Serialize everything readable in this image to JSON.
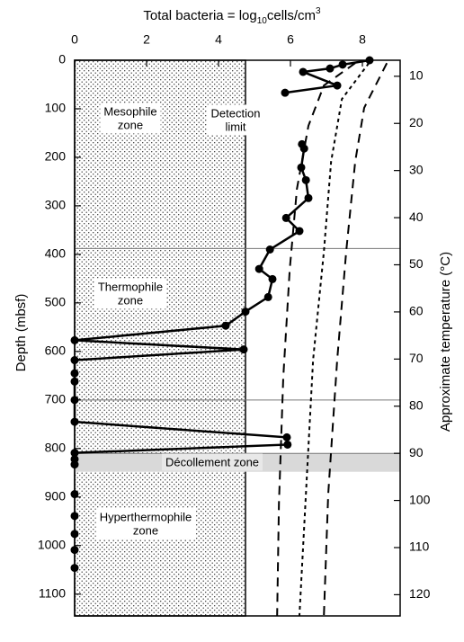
{
  "chart_data": {
    "type": "line",
    "title": [
      "Total bacteria = log",
      "10",
      "cells/cm",
      "3"
    ],
    "ylabel": "Depth (mbsf)",
    "y2label": "Approximate temperature (°C)",
    "xlim": [
      0,
      9.05
    ],
    "xticks": [
      0,
      2,
      4,
      6,
      8
    ],
    "ylim": [
      0,
      1145
    ],
    "yticks": [
      0,
      100,
      200,
      300,
      400,
      500,
      600,
      700,
      800,
      900,
      1000,
      1100
    ],
    "y2lim": [
      6.6,
      124.5
    ],
    "y2ticks": [
      10,
      20,
      30,
      40,
      50,
      60,
      70,
      80,
      90,
      100,
      110,
      120
    ],
    "detection_limit": 4.75,
    "boundaries": [
      388,
      700,
      810
    ],
    "decollement_band": [
      810,
      848
    ],
    "annotations": [
      {
        "lines": [
          "Mesophile",
          "zone"
        ]
      },
      {
        "lines": [
          "Detection",
          "limit"
        ]
      },
      {
        "lines": [
          "Thermophile",
          "zone"
        ]
      },
      {
        "lines": [
          "Décollement zone"
        ]
      },
      {
        "lines": [
          "Hyperthermophile",
          "zone"
        ]
      }
    ],
    "series": [
      {
        "color": "#000000",
        "line": true,
        "markers": true,
        "x": [
          8.2,
          7.45,
          7.1,
          6.35,
          7.3,
          5.85,
          null,
          6.32,
          6.38,
          6.3,
          6.43,
          6.5,
          5.88,
          6.25,
          5.43,
          5.13,
          5.5,
          5.38,
          4.75,
          4.2,
          0,
          4.7,
          0,
          0,
          0,
          0,
          0,
          5.9,
          5.92,
          0
        ],
        "y": [
          0,
          9,
          17,
          24,
          52,
          67,
          null,
          173,
          182,
          221,
          247,
          284,
          325,
          352,
          390,
          430,
          451,
          488,
          518,
          547,
          577,
          596,
          618,
          645,
          662,
          700,
          745,
          777,
          792,
          809
        ]
      },
      {
        "color": "#000000",
        "line": false,
        "markers": true,
        "x": [
          0,
          0,
          0,
          0,
          0,
          0,
          0
        ],
        "y": [
          822,
          833,
          894,
          939,
          976,
          1009,
          1046
        ]
      },
      {
        "color": "#000000",
        "line": true,
        "markers": false,
        "dash": "10 7",
        "x": [
          7.8,
          6.93,
          6.5,
          6.18,
          5.98,
          5.8,
          5.68,
          5.63
        ],
        "y": [
          6,
          52,
          135,
          265,
          431,
          654,
          913,
          1144
        ]
      },
      {
        "color": "#000000",
        "line": true,
        "markers": false,
        "dash": "4 4",
        "x": [
          8.18,
          7.43,
          7.13,
          6.93,
          6.63,
          6.43,
          6.25
        ],
        "y": [
          6,
          80,
          209,
          394,
          617,
          894,
          1144
        ]
      },
      {
        "color": "#000000",
        "line": true,
        "markers": false,
        "dash": "10 7",
        "x": [
          8.68,
          8.05,
          7.8,
          7.55,
          7.3,
          7.05,
          6.93
        ],
        "y": [
          6,
          98,
          209,
          394,
          617,
          894,
          1144
        ]
      }
    ]
  }
}
